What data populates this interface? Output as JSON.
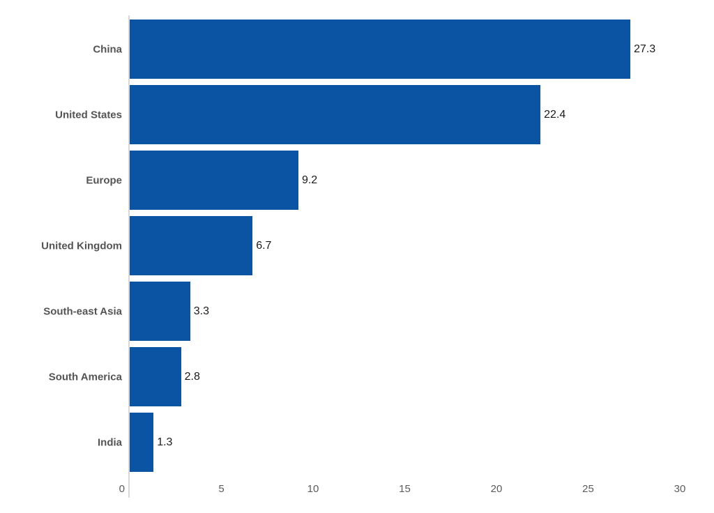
{
  "chart_data": {
    "type": "bar",
    "orientation": "horizontal",
    "categories": [
      "China",
      "United States",
      "Europe",
      "United Kingdom",
      "South-east Asia",
      "South America",
      "India"
    ],
    "values": [
      27.3,
      22.4,
      9.2,
      6.7,
      3.3,
      2.8,
      1.3
    ],
    "value_labels": [
      "27.3",
      "22.4",
      "9.2",
      "6.7",
      "3.3",
      "2.8",
      "1.3"
    ],
    "x_ticks": [
      0,
      5,
      10,
      15,
      20,
      25,
      30
    ],
    "xlim": [
      0,
      30
    ],
    "grid": false,
    "legend": false,
    "value_labels_position": "outside-end",
    "colors": {
      "bar": "#0b54a3",
      "category_label": "#545454",
      "value_label": "#1a1a1a",
      "tick_label": "#5c5c5c",
      "axis_line": "#d8d8d8",
      "background": "#ffffff"
    }
  }
}
